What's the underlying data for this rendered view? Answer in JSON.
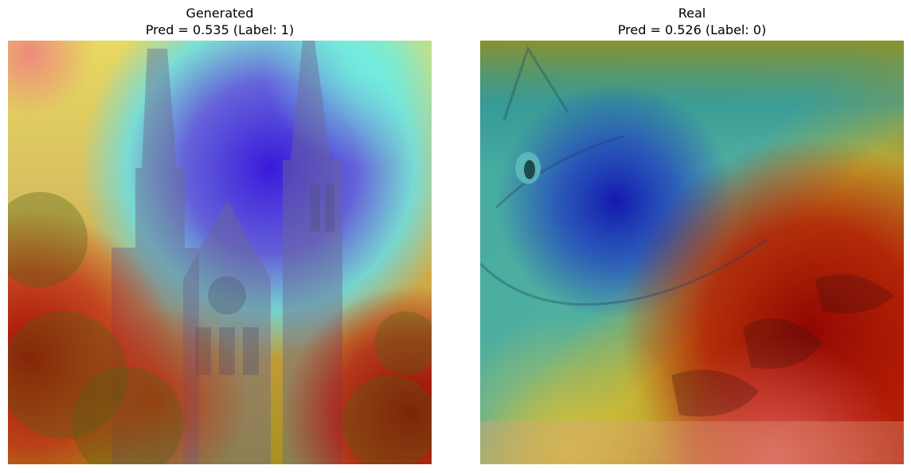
{
  "figure": {
    "panels": [
      {
        "title_line1": "Generated",
        "title_line2": "Pred = 0.535 (Label: 1)",
        "image_subject": "church-with-twin-spires",
        "overlay": "gradcam-heatmap-jet"
      },
      {
        "title_line1": "Real",
        "title_line2": "Pred = 0.526 (Label: 0)",
        "image_subject": "tabby-cat-lying-down",
        "overlay": "gradcam-heatmap-jet"
      }
    ],
    "colors": {
      "heat_red": "#c00000",
      "heat_yellow": "#e8e050",
      "heat_cyan": "#60e8f0",
      "heat_blue": "#3020e0",
      "heat_teal": "#3aa0a0",
      "heat_olive": "#a0a020"
    }
  }
}
